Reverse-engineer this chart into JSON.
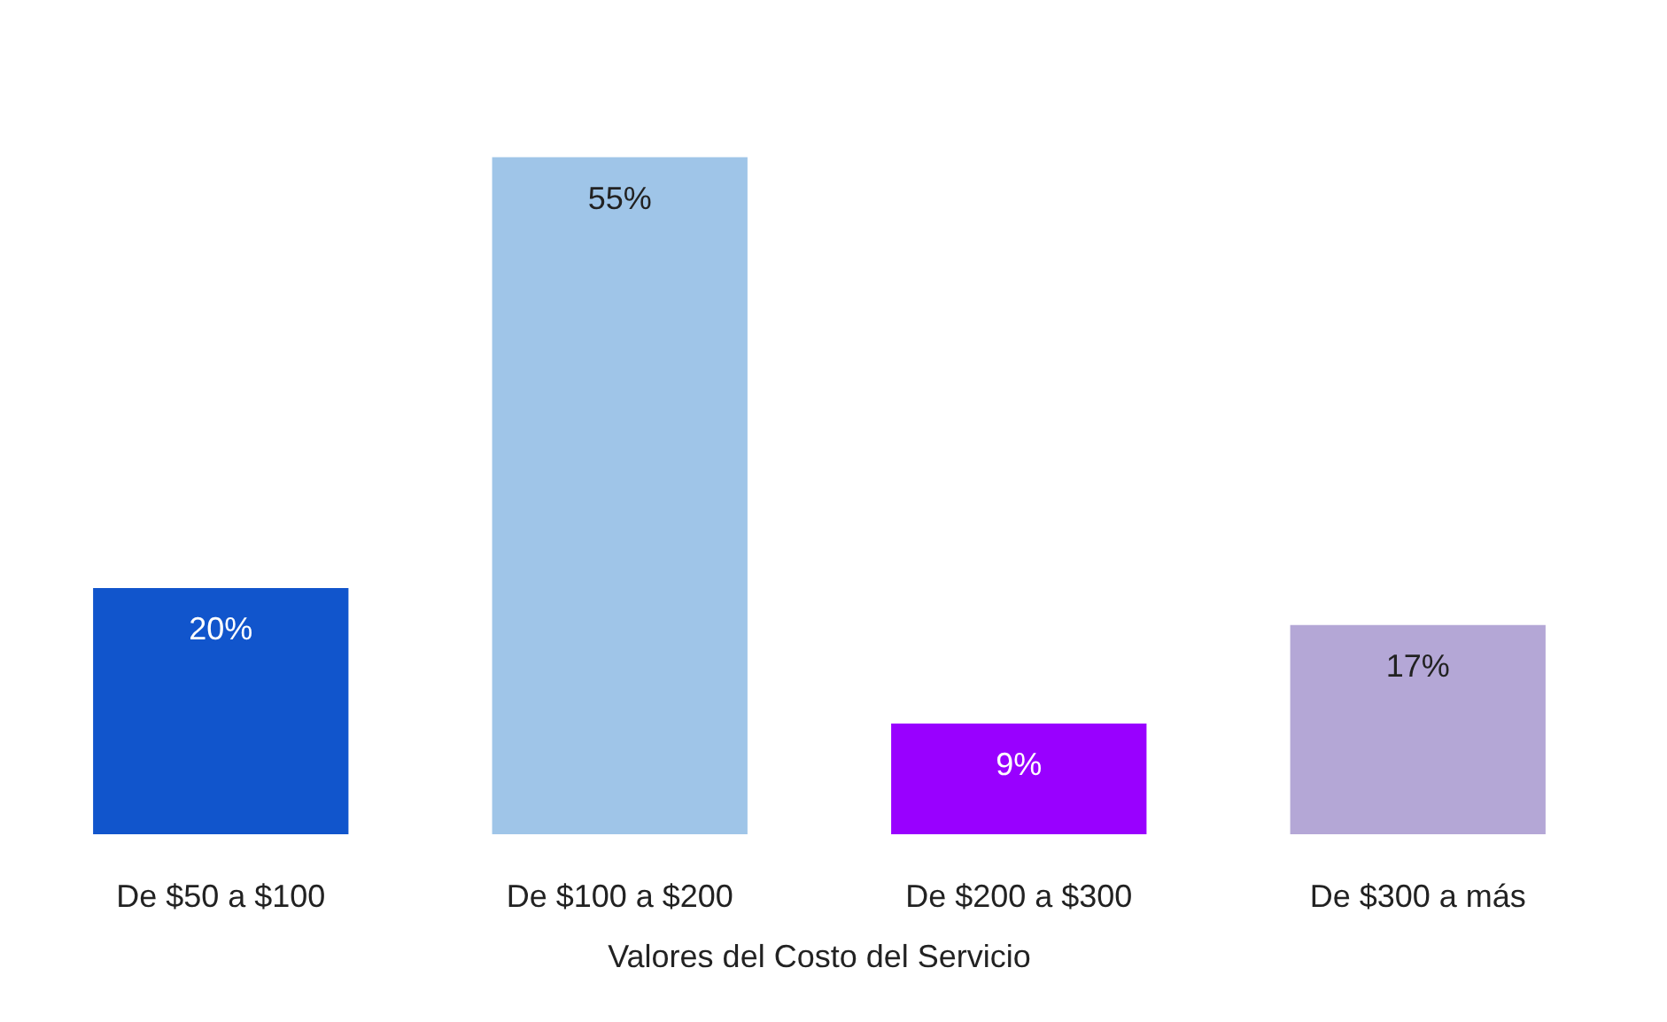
{
  "chart_data": {
    "type": "bar",
    "xlabel": "Valores del Costo del Servicio",
    "categories": [
      "De $50 a $100",
      "De $100 a $200",
      "De $200 a $300",
      "De $300 a más"
    ],
    "values": [
      20,
      55,
      9,
      17
    ],
    "colors": [
      "#1155cc",
      "#9fc5e8",
      "#9900ff",
      "#b4a7d6"
    ],
    "value_labels": [
      "20%",
      "55%",
      "9%",
      "17%"
    ]
  }
}
